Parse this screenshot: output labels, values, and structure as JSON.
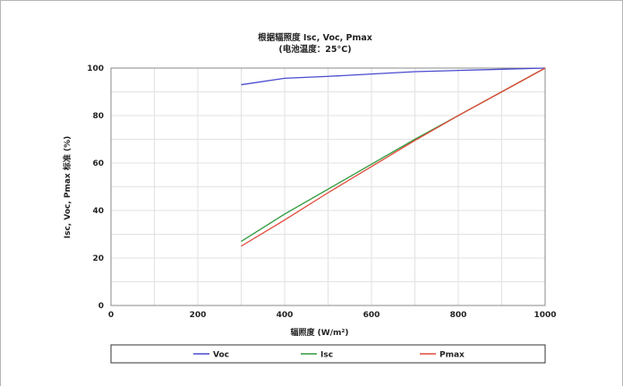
{
  "chart_data": {
    "type": "line",
    "title": "根据辐照度 Isc, Voc, Pmax",
    "subtitle": "(电池温度：25°C)",
    "xlabel": "辐照度 (W/m²)",
    "ylabel": "Isc, Voc, Pmax 标准 (%)",
    "xlim": [
      0,
      1000
    ],
    "ylim": [
      0,
      100
    ],
    "xticks": [
      0,
      200,
      400,
      600,
      800,
      1000
    ],
    "yticks": [
      0,
      20,
      40,
      60,
      80,
      100
    ],
    "grid": true,
    "legend_position": "bottom",
    "series": [
      {
        "name": "Voc",
        "color": "#4a4ad0",
        "x": [
          300,
          400,
          500,
          600,
          700,
          800,
          900,
          1000
        ],
        "y": [
          93,
          95.7,
          96.5,
          97.5,
          98.5,
          99,
          99.5,
          100
        ]
      },
      {
        "name": "Isc",
        "color": "#2e9a3a",
        "x": [
          300,
          400,
          500,
          600,
          700,
          800,
          900,
          1000
        ],
        "y": [
          27,
          38.5,
          49,
          59.5,
          70,
          80,
          90,
          100
        ]
      },
      {
        "name": "Pmax",
        "color": "#e04a3a",
        "x": [
          300,
          400,
          500,
          600,
          700,
          800,
          900,
          1000
        ],
        "y": [
          25,
          36,
          47.5,
          58.5,
          69.5,
          80,
          90,
          100
        ]
      }
    ]
  }
}
